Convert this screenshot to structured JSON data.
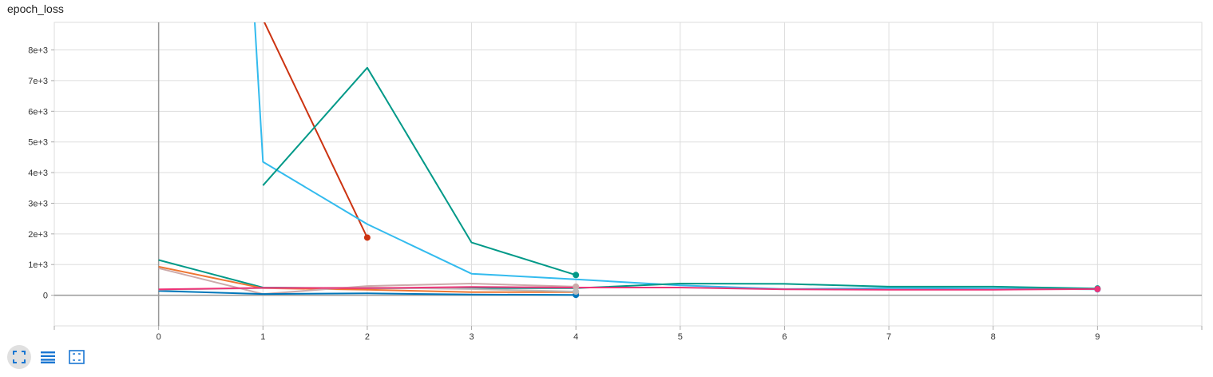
{
  "chart_data": {
    "type": "line",
    "title": "epoch_loss",
    "xlabel": "",
    "ylabel": "",
    "xlim": [
      -1,
      10
    ],
    "ylim": [
      -1000,
      8900
    ],
    "x_ticks": [
      0,
      1,
      2,
      3,
      4,
      5,
      6,
      7,
      8,
      9
    ],
    "y_ticks": [
      0,
      1000,
      2000,
      3000,
      4000,
      5000,
      6000,
      7000,
      8000
    ],
    "y_tick_labels": [
      "0",
      "1e+3",
      "2e+3",
      "3e+3",
      "4e+3",
      "5e+3",
      "6e+3",
      "7e+3",
      "8e+3"
    ],
    "grid": true,
    "series": [
      {
        "color": "#cc3311",
        "x": [
          1,
          2
        ],
        "y": [
          9000,
          1880
        ]
      },
      {
        "color": "#33bbee",
        "x": [
          0.92,
          1,
          2,
          3,
          4,
          5,
          6,
          7,
          8,
          9
        ],
        "y": [
          9000,
          4350,
          2320,
          700,
          520,
          320,
          200,
          230,
          220,
          190
        ]
      },
      {
        "color": "#009988",
        "x": [
          0,
          1,
          2,
          3,
          4,
          5,
          6,
          7,
          8,
          9
        ],
        "y": [
          1150,
          250,
          230,
          230,
          230,
          380,
          370,
          280,
          280,
          220
        ]
      },
      {
        "color": "#009988",
        "x": [
          1,
          2,
          3,
          4
        ],
        "y": [
          3580,
          7420,
          1720,
          660
        ]
      },
      {
        "color": "#ee7733",
        "x": [
          0,
          1,
          2,
          3,
          4
        ],
        "y": [
          930,
          230,
          180,
          100,
          100
        ]
      },
      {
        "color": "#ccaaaa",
        "x": [
          0,
          1,
          2,
          3,
          4
        ],
        "y": [
          880,
          40,
          300,
          380,
          280
        ]
      },
      {
        "color": "#0077bb",
        "x": [
          0,
          1,
          2,
          3,
          4
        ],
        "y": [
          140,
          40,
          60,
          20,
          10
        ]
      },
      {
        "color": "#bbbbbb",
        "x": [
          0,
          1,
          2,
          3,
          4
        ],
        "y": [
          180,
          230,
          250,
          200,
          120
        ]
      },
      {
        "color": "#ee3377",
        "x": [
          0,
          1,
          2,
          3,
          4,
          5,
          6,
          7,
          8,
          9
        ],
        "y": [
          190,
          240,
          230,
          270,
          250,
          250,
          190,
          180,
          180,
          200
        ]
      }
    ]
  },
  "toolbar": {
    "buttons": [
      {
        "icon": "expand-icon",
        "active": true
      },
      {
        "icon": "list-icon",
        "active": false
      },
      {
        "icon": "fit-domain-icon",
        "active": false
      }
    ]
  }
}
